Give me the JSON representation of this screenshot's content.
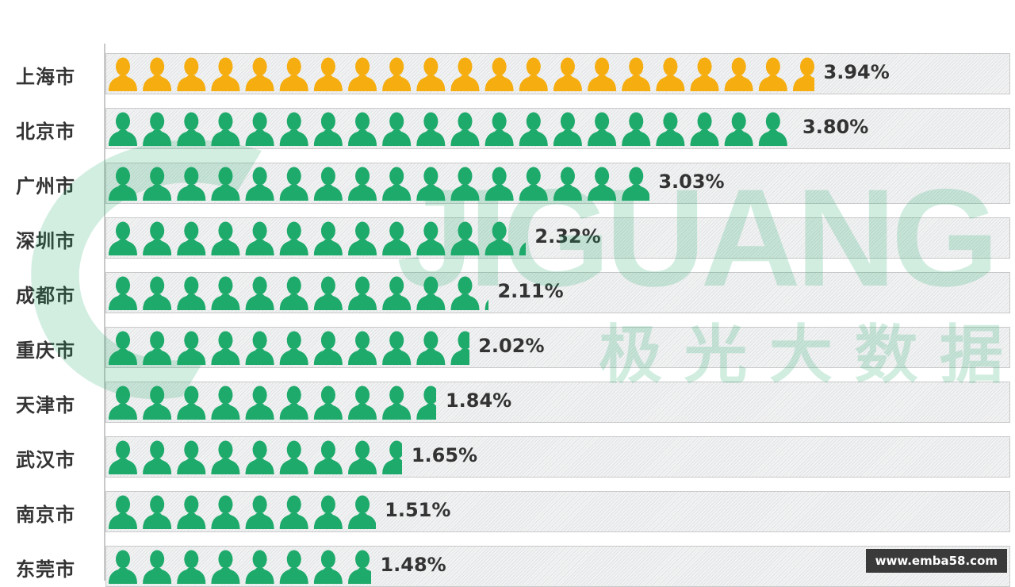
{
  "chart_data": {
    "type": "bar",
    "orientation": "horizontal",
    "style": "pictogram",
    "title": "",
    "categories": [
      "上海市",
      "北京市",
      "广州市",
      "深圳市",
      "成都市",
      "重庆市",
      "天津市",
      "武汉市",
      "南京市",
      "东莞市"
    ],
    "values": [
      3.94,
      3.8,
      3.03,
      2.32,
      2.11,
      2.02,
      1.84,
      1.65,
      1.51,
      1.48
    ],
    "value_labels": [
      "3.94%",
      "3.80%",
      "3.03%",
      "2.32%",
      "2.11%",
      "2.02%",
      "1.84%",
      "1.65%",
      "1.51%",
      "1.48%"
    ],
    "unit": "%",
    "colors": {
      "highlight": "#F5AD0F",
      "default": "#1DAA6A"
    },
    "icon": "person-icon",
    "grid": false
  },
  "watermark": {
    "brand": "JIGUANG",
    "subtitle": "极光大数据",
    "color": "#1DAA6A"
  },
  "footer": {
    "site": "www.emba58.com"
  }
}
